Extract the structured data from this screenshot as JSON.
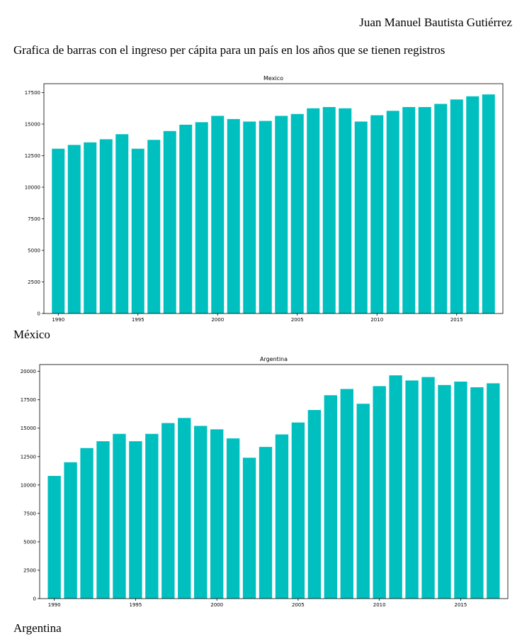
{
  "author": "Juan Manuel Bautista Gutiérrez",
  "intro": "Grafica de barras con el ingreso per cápita para un país en los años que se tienen registros",
  "colors": {
    "bar": "#00bfbf",
    "axis": "#000000"
  },
  "chart_data": [
    {
      "type": "bar",
      "title": "Mexico",
      "caption": "México",
      "years": [
        1990,
        1991,
        1992,
        1993,
        1994,
        1995,
        1996,
        1997,
        1998,
        1999,
        2000,
        2001,
        2002,
        2003,
        2004,
        2005,
        2006,
        2007,
        2008,
        2009,
        2010,
        2011,
        2012,
        2013,
        2014,
        2015,
        2016,
        2017
      ],
      "values": [
        13050,
        13350,
        13550,
        13800,
        14200,
        13050,
        13750,
        14450,
        14950,
        15150,
        15650,
        15400,
        15200,
        15250,
        15650,
        15800,
        16250,
        16350,
        16250,
        15200,
        15700,
        16050,
        16350,
        16350,
        16600,
        16950,
        17200,
        17350
      ],
      "ylim": [
        0,
        18200
      ],
      "yticks": [
        0,
        2500,
        5000,
        7500,
        10000,
        12500,
        15000,
        17500
      ],
      "xticks": [
        1990,
        1995,
        2000,
        2005,
        2010,
        2015
      ],
      "grid": false
    },
    {
      "type": "bar",
      "title": "Argentina",
      "caption": "Argentina",
      "years": [
        1990,
        1991,
        1992,
        1993,
        1994,
        1995,
        1996,
        1997,
        1998,
        1999,
        2000,
        2001,
        2002,
        2003,
        2004,
        2005,
        2006,
        2007,
        2008,
        2009,
        2010,
        2011,
        2012,
        2013,
        2014,
        2015,
        2016,
        2017
      ],
      "values": [
        10800,
        12000,
        13250,
        13850,
        14500,
        13850,
        14500,
        15450,
        15900,
        15200,
        14900,
        14100,
        12400,
        13350,
        14450,
        15500,
        16600,
        17900,
        18450,
        17150,
        18700,
        19650,
        19200,
        19500,
        18800,
        19100,
        18600,
        18950
      ],
      "ylim": [
        0,
        20600
      ],
      "yticks": [
        0,
        2500,
        5000,
        7500,
        10000,
        12500,
        15000,
        17500,
        20000
      ],
      "xticks": [
        1990,
        1995,
        2000,
        2005,
        2010,
        2015
      ],
      "grid": false
    }
  ]
}
